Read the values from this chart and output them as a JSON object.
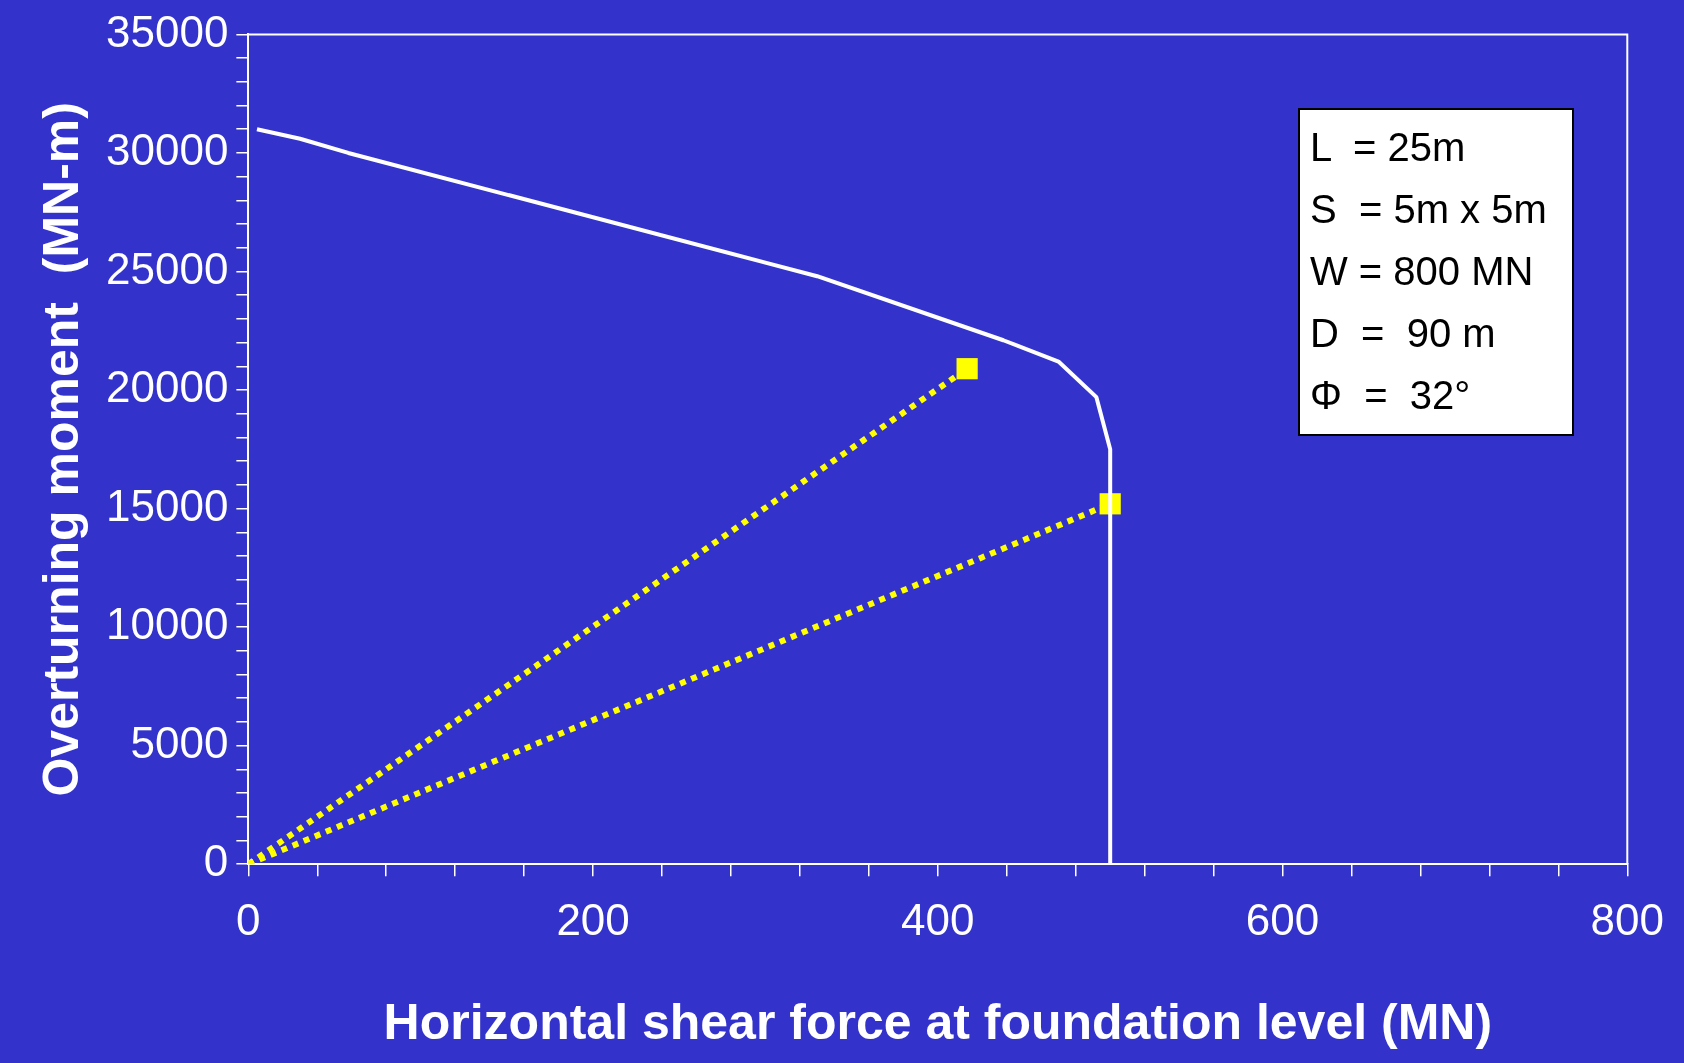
{
  "chart_data": {
    "type": "line",
    "xlabel": "Horizontal shear force at foundation level (MN)",
    "ylabel": "Overturning moment  (MN-m)",
    "xlim": [
      0,
      800
    ],
    "ylim": [
      0,
      35000
    ],
    "xticks": [
      0,
      {
        "value": 40,
        "label": null
      },
      {
        "value": 80,
        "label": null
      },
      {
        "value": 120,
        "label": null
      },
      {
        "value": 160,
        "label": null
      },
      200,
      {
        "value": 240,
        "label": null
      },
      {
        "value": 280,
        "label": null
      },
      {
        "value": 320,
        "label": null
      },
      {
        "value": 360,
        "label": null
      },
      400,
      {
        "value": 440,
        "label": null
      },
      {
        "value": 480,
        "label": null
      },
      {
        "value": 520,
        "label": null
      },
      {
        "value": 560,
        "label": null
      },
      600,
      {
        "value": 640,
        "label": null
      },
      {
        "value": 680,
        "label": null
      },
      {
        "value": 720,
        "label": null
      },
      {
        "value": 760,
        "label": null
      },
      800
    ],
    "yticks": [
      0,
      {
        "value": 1000,
        "label": null
      },
      {
        "value": 2000,
        "label": null
      },
      {
        "value": 3000,
        "label": null
      },
      {
        "value": 4000,
        "label": null
      },
      5000,
      {
        "value": 6000,
        "label": null
      },
      {
        "value": 7000,
        "label": null
      },
      {
        "value": 8000,
        "label": null
      },
      {
        "value": 9000,
        "label": null
      },
      10000,
      {
        "value": 11000,
        "label": null
      },
      {
        "value": 12000,
        "label": null
      },
      {
        "value": 13000,
        "label": null
      },
      {
        "value": 14000,
        "label": null
      },
      15000,
      {
        "value": 16000,
        "label": null
      },
      {
        "value": 17000,
        "label": null
      },
      {
        "value": 18000,
        "label": null
      },
      {
        "value": 19000,
        "label": null
      },
      20000,
      {
        "value": 21000,
        "label": null
      },
      {
        "value": 22000,
        "label": null
      },
      {
        "value": 23000,
        "label": null
      },
      {
        "value": 24000,
        "label": null
      },
      25000,
      {
        "value": 26000,
        "label": null
      },
      {
        "value": 27000,
        "label": null
      },
      {
        "value": 28000,
        "label": null
      },
      {
        "value": 29000,
        "label": null
      },
      30000,
      {
        "value": 31000,
        "label": null
      },
      {
        "value": 32000,
        "label": null
      },
      {
        "value": 33000,
        "label": null
      },
      {
        "value": 34000,
        "label": null
      },
      35000
    ],
    "grid": false,
    "legend": false,
    "series": [
      {
        "color": "#ffffff",
        "line_style": "solid",
        "marker": "none",
        "x": [
          5,
          30,
          58,
          330,
          438,
          470,
          492,
          500,
          500
        ],
        "values": [
          31000,
          30600,
          30000,
          24800,
          22100,
          21200,
          19700,
          17500,
          0
        ]
      },
      {
        "color": "#ffff00",
        "line_style": "dotted",
        "marker": "none",
        "x": [
          0,
          417
        ],
        "values": [
          0,
          20900
        ]
      },
      {
        "color": "#ffff00",
        "line_style": "dotted",
        "marker": "none",
        "x": [
          0,
          500
        ],
        "values": [
          0,
          15200
        ]
      },
      {
        "type": "scatter",
        "color": "#ffff00",
        "marker": "square",
        "x": [
          417,
          500
        ],
        "values": [
          20900,
          15200
        ]
      }
    ],
    "annotations": [
      "L  = 25m",
      "S  = 5m x 5m",
      "W = 800 MN",
      "D  =  90 m",
      "Φ  =  32°"
    ]
  }
}
